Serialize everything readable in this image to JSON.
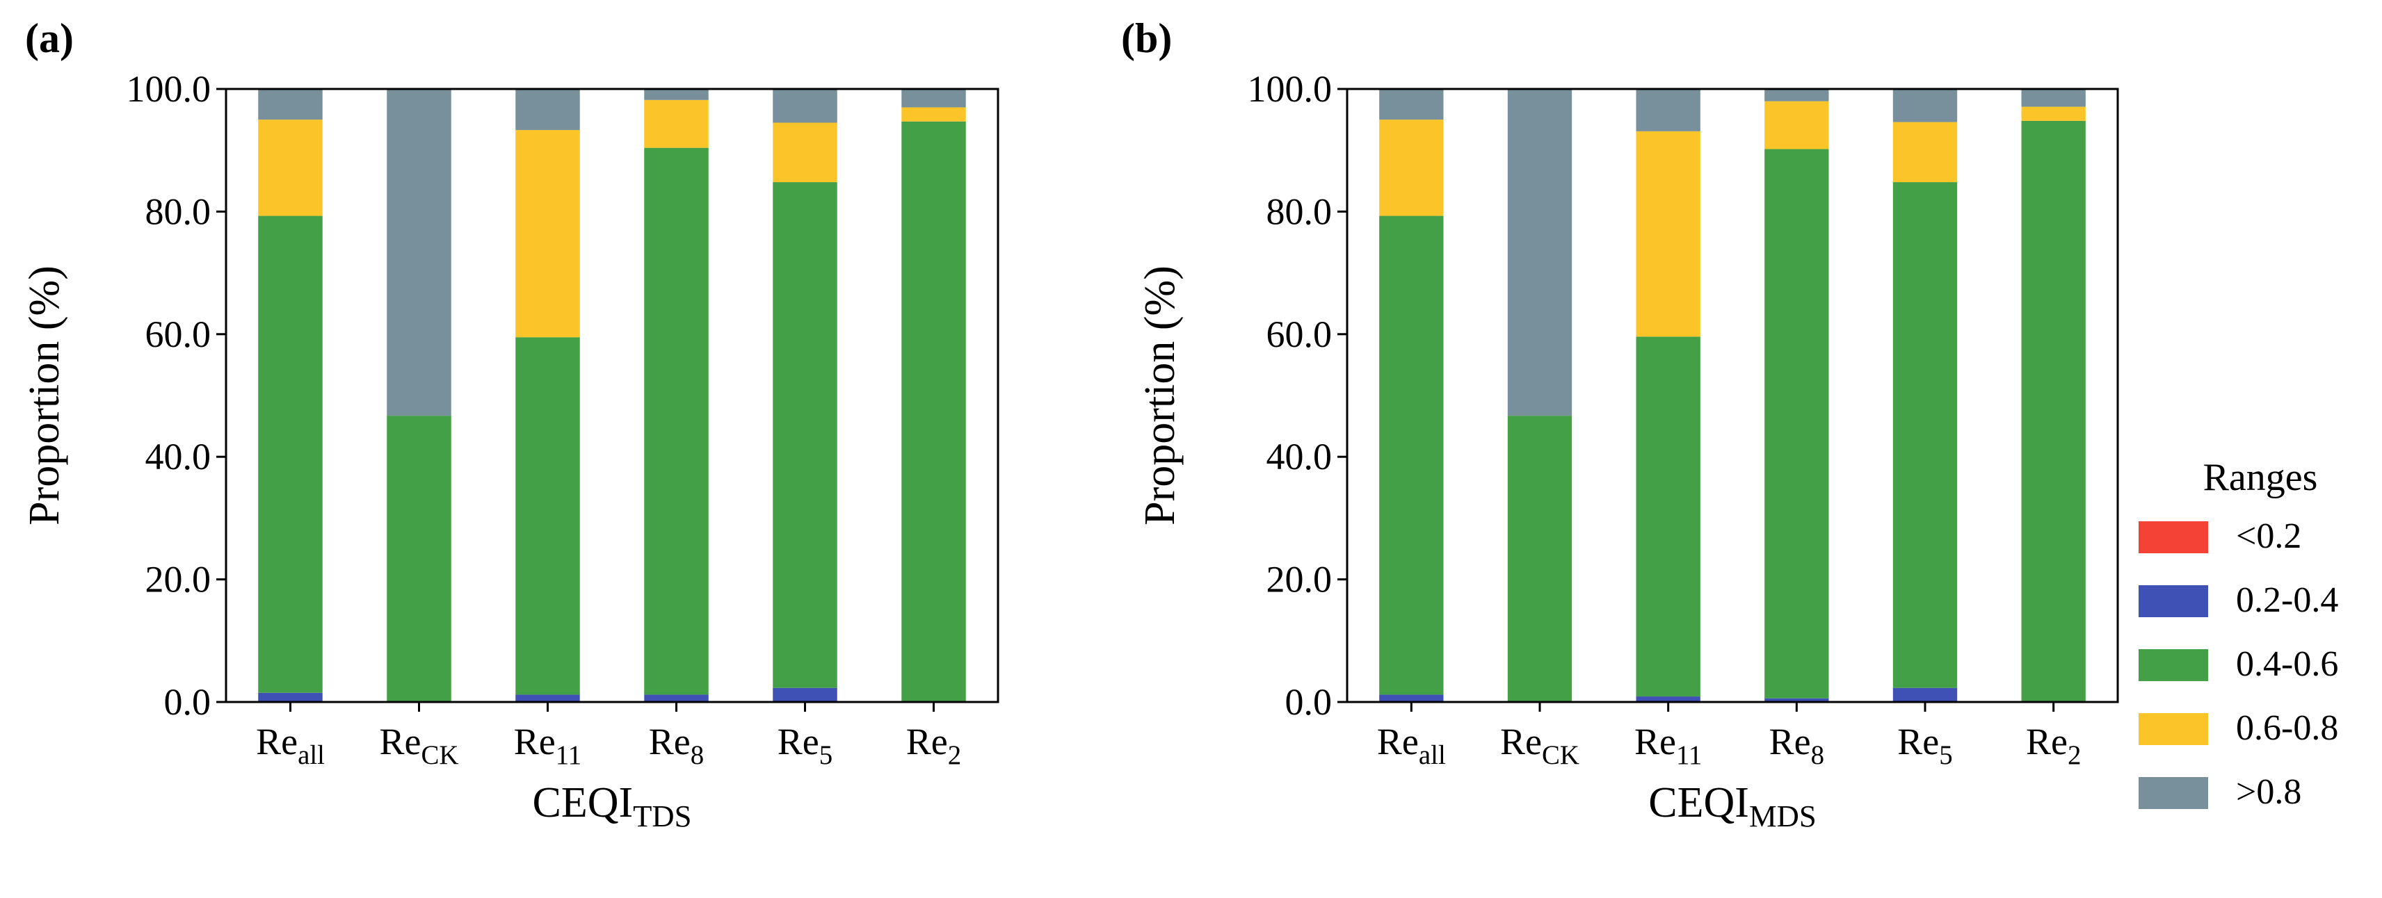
{
  "colors": {
    "lt_0_2": "#f44336",
    "r_0_2_0_4": "#3f51b5",
    "r_0_4_0_6": "#43a047",
    "r_0_6_0_8": "#fbc52a",
    "gt_0_8": "#78909c"
  },
  "legend": {
    "title": "Ranges",
    "items": [
      {
        "label": "<0.2",
        "color_key": "lt_0_2"
      },
      {
        "label": "0.2-0.4",
        "color_key": "r_0_2_0_4"
      },
      {
        "label": "0.4-0.6",
        "color_key": "r_0_4_0_6"
      },
      {
        "label": "0.6-0.8",
        "color_key": "r_0_6_0_8"
      },
      {
        "label": ">0.8",
        "color_key": "gt_0_8"
      }
    ]
  },
  "chart_data": [
    {
      "panel": "(a)",
      "type": "bar",
      "stacked": true,
      "xlabel": {
        "base": "CEQI",
        "sub": "TDS"
      },
      "ylabel": "Proportion (%)",
      "ylim": [
        0,
        100
      ],
      "yticks": [
        "0.0",
        "20.0",
        "40.0",
        "60.0",
        "80.0",
        "100.0"
      ],
      "categories": [
        {
          "base": "Re",
          "sub": "all"
        },
        {
          "base": "Re",
          "sub": "CK"
        },
        {
          "base": "Re",
          "sub": "11"
        },
        {
          "base": "Re",
          "sub": "8"
        },
        {
          "base": "Re",
          "sub": "5"
        },
        {
          "base": "Re",
          "sub": "2"
        }
      ],
      "series": [
        {
          "name": "<0.2",
          "color_key": "lt_0_2",
          "values": [
            0.0,
            0.0,
            0.0,
            0.0,
            0.0,
            0.0
          ]
        },
        {
          "name": "0.2-0.4",
          "color_key": "r_0_2_0_4",
          "values": [
            1.5,
            0.0,
            1.2,
            1.2,
            2.3,
            0.0
          ]
        },
        {
          "name": "0.4-0.6",
          "color_key": "r_0_4_0_6",
          "values": [
            77.8,
            46.7,
            58.3,
            89.2,
            82.5,
            94.7
          ]
        },
        {
          "name": "0.6-0.8",
          "color_key": "r_0_6_0_8",
          "values": [
            15.7,
            0.0,
            33.8,
            7.8,
            9.7,
            2.3
          ]
        },
        {
          "name": ">0.8",
          "color_key": "gt_0_8",
          "values": [
            5.0,
            53.3,
            6.7,
            1.8,
            5.5,
            3.0
          ]
        }
      ]
    },
    {
      "panel": "(b)",
      "type": "bar",
      "stacked": true,
      "xlabel": {
        "base": "CEQI",
        "sub": "MDS"
      },
      "ylabel": "Proportion (%)",
      "ylim": [
        0,
        100
      ],
      "yticks": [
        "0.0",
        "20.0",
        "40.0",
        "60.0",
        "80.0",
        "100.0"
      ],
      "categories": [
        {
          "base": "Re",
          "sub": "all"
        },
        {
          "base": "Re",
          "sub": "CK"
        },
        {
          "base": "Re",
          "sub": "11"
        },
        {
          "base": "Re",
          "sub": "8"
        },
        {
          "base": "Re",
          "sub": "5"
        },
        {
          "base": "Re",
          "sub": "2"
        }
      ],
      "series": [
        {
          "name": "<0.2",
          "color_key": "lt_0_2",
          "values": [
            0.0,
            0.0,
            0.0,
            0.0,
            0.0,
            0.0
          ]
        },
        {
          "name": "0.2-0.4",
          "color_key": "r_0_2_0_4",
          "values": [
            1.2,
            0.0,
            0.9,
            0.6,
            2.3,
            0.0
          ]
        },
        {
          "name": "0.4-0.6",
          "color_key": "r_0_4_0_6",
          "values": [
            78.1,
            46.7,
            58.7,
            89.6,
            82.5,
            94.8
          ]
        },
        {
          "name": "0.6-0.8",
          "color_key": "r_0_6_0_8",
          "values": [
            15.7,
            0.0,
            33.5,
            7.8,
            9.8,
            2.3
          ]
        },
        {
          "name": ">0.8",
          "color_key": "gt_0_8",
          "values": [
            5.0,
            53.3,
            6.9,
            2.0,
            5.4,
            2.9
          ]
        }
      ]
    }
  ]
}
